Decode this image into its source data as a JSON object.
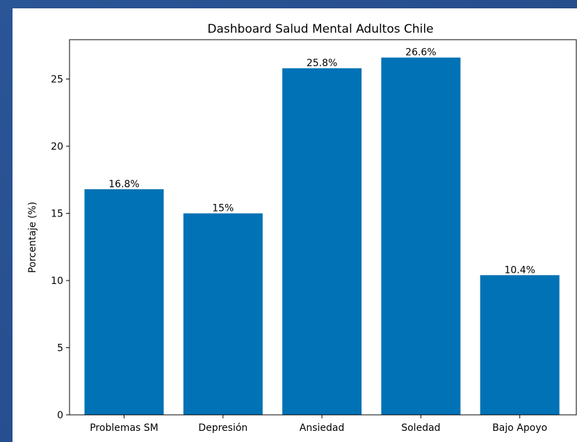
{
  "chart_data": {
    "type": "bar",
    "title": "Dashboard Salud Mental Adultos Chile",
    "xlabel": "",
    "ylabel": "Porcentaje (%)",
    "categories": [
      "Problemas SM",
      "Depresión",
      "Ansiedad",
      "Soledad",
      "Bajo Apoyo"
    ],
    "values": [
      16.8,
      15,
      25.8,
      26.6,
      10.4
    ],
    "data_labels": [
      "16.8%",
      "15%",
      "25.8%",
      "26.6%",
      "10.4%"
    ],
    "ylim": [
      0,
      27.93
    ],
    "yticks": [
      0,
      5,
      10,
      15,
      20,
      25
    ],
    "ytick_labels": [
      "0",
      "5",
      "10",
      "15",
      "20",
      "25"
    ],
    "grid": false,
    "bar_color": "#0072b5"
  },
  "colors": {
    "background_gradient_start": "#2a5596",
    "background_gradient_end": "#1f4682",
    "panel": "#ffffff",
    "axis": "#000000"
  }
}
